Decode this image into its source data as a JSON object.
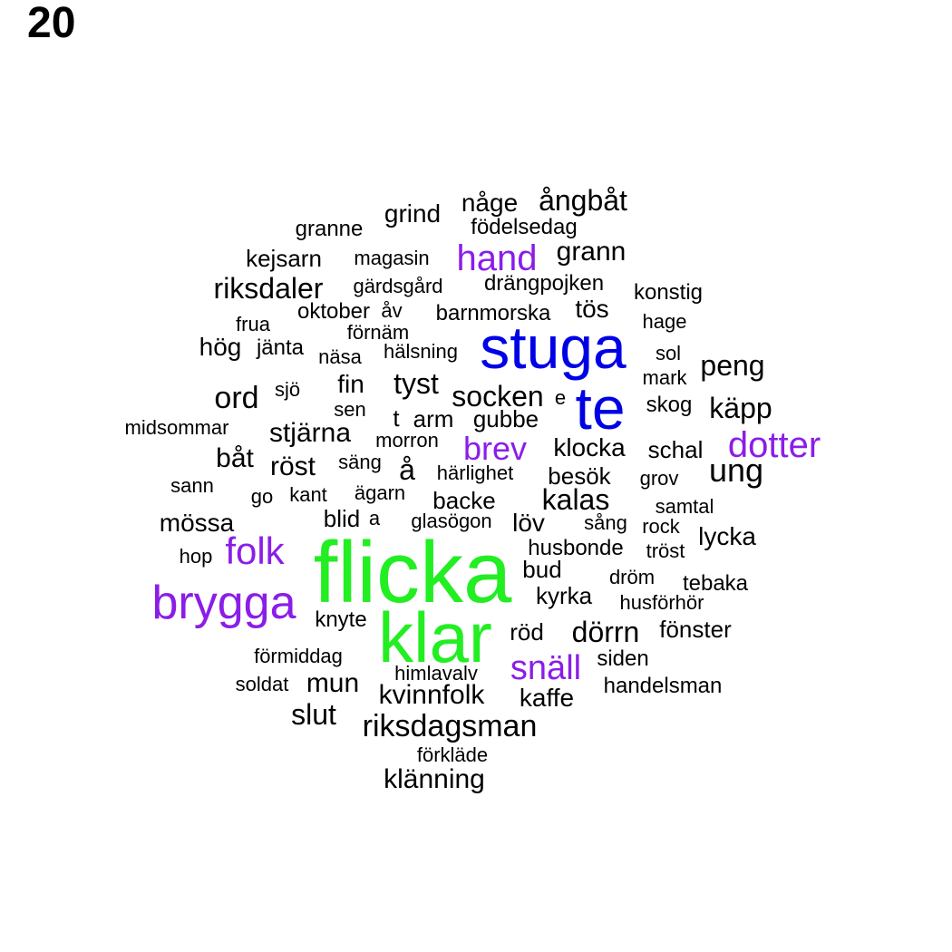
{
  "panel_label": "20",
  "colors": {
    "black": "#000000",
    "purple": "#8B1DE8",
    "blue": "#0000E6",
    "green": "#22EE22"
  },
  "words": [
    {
      "text": "flicka",
      "color": "green"
    },
    {
      "text": "klar",
      "color": "green"
    },
    {
      "text": "stuga",
      "color": "blue"
    },
    {
      "text": "te",
      "color": "blue"
    },
    {
      "text": "brygga",
      "color": "purple"
    },
    {
      "text": "folk",
      "color": "purple"
    },
    {
      "text": "dotter",
      "color": "purple"
    },
    {
      "text": "hand",
      "color": "purple"
    },
    {
      "text": "brev",
      "color": "purple"
    },
    {
      "text": "snäll",
      "color": "purple"
    },
    {
      "text": "någe",
      "color": "black"
    },
    {
      "text": "ångbåt",
      "color": "black"
    },
    {
      "text": "grind",
      "color": "black"
    },
    {
      "text": "födelsedag",
      "color": "black"
    },
    {
      "text": "granne",
      "color": "black"
    },
    {
      "text": "grann",
      "color": "black"
    },
    {
      "text": "kejsarn",
      "color": "black"
    },
    {
      "text": "magasin",
      "color": "black"
    },
    {
      "text": "riksdaler",
      "color": "black"
    },
    {
      "text": "gärdsgård",
      "color": "black"
    },
    {
      "text": "drängpojken",
      "color": "black"
    },
    {
      "text": "konstig",
      "color": "black"
    },
    {
      "text": "oktober",
      "color": "black"
    },
    {
      "text": "åv",
      "color": "black"
    },
    {
      "text": "barnmorska",
      "color": "black"
    },
    {
      "text": "tös",
      "color": "black"
    },
    {
      "text": "frua",
      "color": "black"
    },
    {
      "text": "förnäm",
      "color": "black"
    },
    {
      "text": "hage",
      "color": "black"
    },
    {
      "text": "hög",
      "color": "black"
    },
    {
      "text": "jänta",
      "color": "black"
    },
    {
      "text": "näsa",
      "color": "black"
    },
    {
      "text": "hälsning",
      "color": "black"
    },
    {
      "text": "sol",
      "color": "black"
    },
    {
      "text": "peng",
      "color": "black"
    },
    {
      "text": "mark",
      "color": "black"
    },
    {
      "text": "fin",
      "color": "black"
    },
    {
      "text": "tyst",
      "color": "black"
    },
    {
      "text": "sjö",
      "color": "black"
    },
    {
      "text": "ord",
      "color": "black"
    },
    {
      "text": "socken",
      "color": "black"
    },
    {
      "text": "e",
      "color": "black"
    },
    {
      "text": "skog",
      "color": "black"
    },
    {
      "text": "käpp",
      "color": "black"
    },
    {
      "text": "sen",
      "color": "black"
    },
    {
      "text": "t",
      "color": "black"
    },
    {
      "text": "arm",
      "color": "black"
    },
    {
      "text": "gubbe",
      "color": "black"
    },
    {
      "text": "midsommar",
      "color": "black"
    },
    {
      "text": "stjärna",
      "color": "black"
    },
    {
      "text": "morron",
      "color": "black"
    },
    {
      "text": "klocka",
      "color": "black"
    },
    {
      "text": "schal",
      "color": "black"
    },
    {
      "text": "båt",
      "color": "black"
    },
    {
      "text": "röst",
      "color": "black"
    },
    {
      "text": "säng",
      "color": "black"
    },
    {
      "text": "å",
      "color": "black"
    },
    {
      "text": "härlighet",
      "color": "black"
    },
    {
      "text": "besök",
      "color": "black"
    },
    {
      "text": "grov",
      "color": "black"
    },
    {
      "text": "ung",
      "color": "black"
    },
    {
      "text": "sann",
      "color": "black"
    },
    {
      "text": "go",
      "color": "black"
    },
    {
      "text": "kant",
      "color": "black"
    },
    {
      "text": "ägarn",
      "color": "black"
    },
    {
      "text": "backe",
      "color": "black"
    },
    {
      "text": "kalas",
      "color": "black"
    },
    {
      "text": "samtal",
      "color": "black"
    },
    {
      "text": "mössa",
      "color": "black"
    },
    {
      "text": "blid",
      "color": "black"
    },
    {
      "text": "a",
      "color": "black"
    },
    {
      "text": "glasögon",
      "color": "black"
    },
    {
      "text": "löv",
      "color": "black"
    },
    {
      "text": "sång",
      "color": "black"
    },
    {
      "text": "rock",
      "color": "black"
    },
    {
      "text": "lycka",
      "color": "black"
    },
    {
      "text": "hop",
      "color": "black"
    },
    {
      "text": "husbonde",
      "color": "black"
    },
    {
      "text": "tröst",
      "color": "black"
    },
    {
      "text": "bud",
      "color": "black"
    },
    {
      "text": "dröm",
      "color": "black"
    },
    {
      "text": "tebaka",
      "color": "black"
    },
    {
      "text": "kyrka",
      "color": "black"
    },
    {
      "text": "husförhör",
      "color": "black"
    },
    {
      "text": "knyte",
      "color": "black"
    },
    {
      "text": "röd",
      "color": "black"
    },
    {
      "text": "dörrn",
      "color": "black"
    },
    {
      "text": "fönster",
      "color": "black"
    },
    {
      "text": "förmiddag",
      "color": "black"
    },
    {
      "text": "siden",
      "color": "black"
    },
    {
      "text": "soldat",
      "color": "black"
    },
    {
      "text": "mun",
      "color": "black"
    },
    {
      "text": "himlavalv",
      "color": "black"
    },
    {
      "text": "handelsman",
      "color": "black"
    },
    {
      "text": "kvinnfolk",
      "color": "black"
    },
    {
      "text": "kaffe",
      "color": "black"
    },
    {
      "text": "slut",
      "color": "black"
    },
    {
      "text": "riksdagsman",
      "color": "black"
    },
    {
      "text": "förkläde",
      "color": "black"
    },
    {
      "text": "klänning",
      "color": "black"
    }
  ]
}
